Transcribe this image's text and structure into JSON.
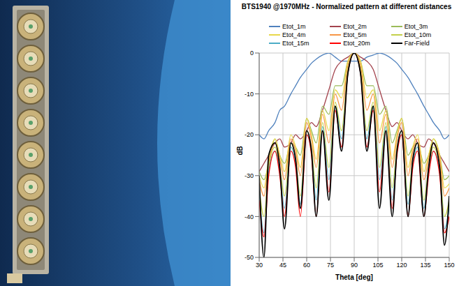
{
  "chart_data": {
    "type": "line",
    "title": "BTS1940 @1970MHz - Normalized pattern at different distances",
    "x_label": "Theta [deg]",
    "y_label": "dB",
    "x": [
      30,
      33,
      36,
      40,
      43,
      46,
      50,
      53,
      56,
      60,
      63,
      66,
      70,
      74,
      78,
      82,
      86,
      90,
      94,
      98,
      102,
      106,
      110,
      114,
      117,
      120,
      124,
      127,
      130,
      134,
      137,
      140,
      144,
      147,
      150
    ],
    "xlim": [
      30,
      150
    ],
    "xticks": [
      30,
      45,
      60,
      75,
      90,
      105,
      120,
      135,
      150
    ],
    "ylim": [
      -50,
      0
    ],
    "yticks": [
      -50,
      -40,
      -30,
      -20,
      -10,
      0
    ],
    "grid": true,
    "legend": "top",
    "series": [
      {
        "name": "Etot_1m",
        "color": "#4f81bd",
        "values": [
          -20,
          -21,
          -19,
          -17,
          -14,
          -13,
          -10,
          -8,
          -6,
          -4,
          -2.5,
          -1.5,
          -0.5,
          0,
          -1,
          -2,
          -2,
          -2,
          -2,
          -1,
          -0.5,
          0,
          -0.5,
          -1.5,
          -2.5,
          -4,
          -6,
          -8,
          -10,
          -13,
          -15,
          -17,
          -19,
          -21,
          -20
        ]
      },
      {
        "name": "Etot_2m",
        "color": "#a3434d",
        "values": [
          -29,
          -27,
          -25,
          -22,
          -21,
          -23,
          -22,
          -20,
          -21,
          -19,
          -17,
          -18,
          -14,
          -9,
          -4,
          -2,
          -1,
          0,
          -1,
          -2,
          -4,
          -9,
          -14,
          -18,
          -17,
          -19,
          -21,
          -20,
          -22,
          -23,
          -21,
          -22,
          -25,
          -27,
          -29
        ]
      },
      {
        "name": "Etot_3m",
        "color": "#9bbb59",
        "values": [
          -29,
          -31,
          -27,
          -21,
          -25,
          -27,
          -22,
          -23,
          -25,
          -16,
          -19,
          -22,
          -13,
          -15,
          -8,
          -8,
          -2,
          0,
          -2,
          -8,
          -8,
          -15,
          -13,
          -22,
          -19,
          -16,
          -25,
          -23,
          -22,
          -27,
          -25,
          -21,
          -25,
          -31,
          -30
        ]
      },
      {
        "name": "Etot_4m",
        "color": "#e8d84a",
        "values": [
          -30,
          -33,
          -26,
          -21,
          -25,
          -29,
          -20,
          -23,
          -28,
          -16,
          -20,
          -26,
          -14,
          -19,
          -9,
          -11,
          -2,
          0,
          -2,
          -11,
          -9,
          -19,
          -14,
          -26,
          -20,
          -16,
          -28,
          -23,
          -20,
          -29,
          -25,
          -21,
          -25,
          -33,
          -32
        ]
      },
      {
        "name": "Etot_5m",
        "color": "#f79646",
        "values": [
          -31,
          -35,
          -27,
          -22,
          -26,
          -31,
          -21,
          -24,
          -30,
          -17,
          -21,
          -28,
          -15,
          -22,
          -10,
          -14,
          -3,
          0,
          -3,
          -14,
          -10,
          -22,
          -15,
          -28,
          -21,
          -17,
          -30,
          -24,
          -21,
          -31,
          -26,
          -22,
          -26,
          -35,
          -33
        ]
      },
      {
        "name": "Etot_10m",
        "color": "#c4d04a",
        "values": [
          -33,
          -40,
          -28,
          -23,
          -28,
          -35,
          -22,
          -26,
          -35,
          -19,
          -23,
          -33,
          -17,
          -28,
          -12,
          -19,
          -4,
          0,
          -4,
          -19,
          -12,
          -28,
          -17,
          -33,
          -23,
          -19,
          -35,
          -26,
          -22,
          -36,
          -28,
          -23,
          -28,
          -40,
          -36
        ]
      },
      {
        "name": "Etot_15m",
        "color": "#4bacc6",
        "values": [
          -34,
          -44,
          -29,
          -24,
          -29,
          -38,
          -23,
          -27,
          -37,
          -20,
          -24,
          -36,
          -18,
          -31,
          -13,
          -21,
          -5,
          0,
          -5,
          -21,
          -13,
          -31,
          -18,
          -36,
          -24,
          -20,
          -37,
          -27,
          -23,
          -38,
          -29,
          -24,
          -29,
          -43,
          -38
        ]
      },
      {
        "name": "Etot_20m",
        "color": "#ff0000",
        "values": [
          -36,
          -45,
          -30,
          -24,
          -30,
          -40,
          -24,
          -28,
          -40,
          -20,
          -25,
          -40,
          -19,
          -34,
          -14,
          -23,
          -5,
          0,
          -5,
          -23,
          -14,
          -34,
          -19,
          -38,
          -25,
          -20,
          -40,
          -28,
          -24,
          -40,
          -30,
          -24,
          -30,
          -44,
          -40
        ]
      },
      {
        "name": "Far-Field",
        "color": "#000000",
        "values": [
          -30,
          -50,
          -25,
          -22,
          -28,
          -43,
          -22,
          -26,
          -38,
          -19,
          -24,
          -40,
          -19,
          -36,
          -13,
          -24,
          -5,
          0,
          -5,
          -24,
          -13,
          -38,
          -19,
          -40,
          -24,
          -19,
          -40,
          -26,
          -22,
          -40,
          -28,
          -22,
          -28,
          -47,
          -35
        ]
      }
    ]
  }
}
